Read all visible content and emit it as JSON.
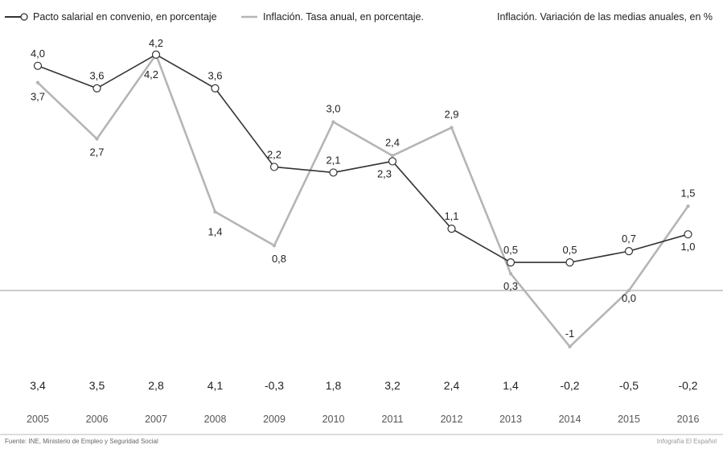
{
  "legend": {
    "series1": "Pacto salarial en convenio, en porcentaje",
    "series2": "Inflación. Tasa anual, en porcentaje.",
    "series3": "Inflación. Variación de las medias anuales, en %"
  },
  "colors": {
    "pacto": "#333333",
    "inflacion": "#b5b5b5",
    "baseline": "#999999"
  },
  "chart_data": {
    "type": "line",
    "x": [
      "2005",
      "2006",
      "2007",
      "2008",
      "2009",
      "2010",
      "2011",
      "2012",
      "2013",
      "2014",
      "2015",
      "2016"
    ],
    "series": [
      {
        "name": "Pacto salarial en convenio, en porcentaje",
        "values": [
          4.0,
          3.6,
          4.2,
          3.6,
          2.2,
          2.1,
          2.3,
          1.1,
          0.5,
          0.5,
          0.7,
          1.0
        ],
        "labels": [
          "4,0",
          "3,6",
          "4,2",
          "3,6",
          "2,2",
          "2,1",
          "2,3",
          "1,1",
          "0,5",
          "0,5",
          "0,7",
          "1,0"
        ]
      },
      {
        "name": "Inflación. Tasa anual, en porcentaje.",
        "values": [
          3.7,
          2.7,
          4.2,
          1.4,
          0.8,
          3.0,
          2.4,
          2.9,
          0.3,
          -1.0,
          0.0,
          1.5
        ],
        "labels": [
          "3,7",
          "2,7",
          "4,2",
          "1,4",
          "0,8",
          "3,0",
          "2,4",
          "2,9",
          "0,3",
          "-1",
          "0,0",
          "1,5"
        ]
      }
    ],
    "bottom_row": {
      "name": "Inflación. Variación de las medias anuales, en %",
      "values": [
        3.4,
        3.5,
        2.8,
        4.1,
        -0.3,
        1.8,
        3.2,
        2.4,
        1.4,
        -0.2,
        -0.5,
        -0.2
      ],
      "labels": [
        "3,4",
        "3,5",
        "2,8",
        "4,1",
        "-0,3",
        "1,8",
        "3,2",
        "2,4",
        "1,4",
        "-0,2",
        "-0,5",
        "-0,2"
      ]
    },
    "baseline": 0
  },
  "footer": {
    "source": "Fuente: INE, Ministerio de Empleo y Seguridad Social",
    "credit": "Infografía El Español"
  }
}
